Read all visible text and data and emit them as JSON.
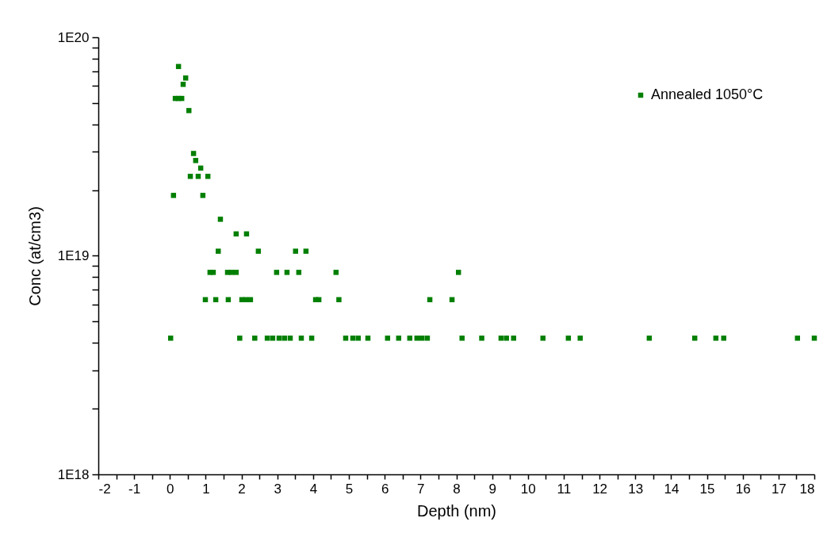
{
  "chart_data": {
    "type": "scatter",
    "xlabel": "Depth (nm)",
    "ylabel": "Conc (at/cm3)",
    "log": "y",
    "grid": false,
    "legend": "top right",
    "marker": "square",
    "xlim": [
      -2,
      18
    ],
    "xticks": [
      -2,
      {
        "value": -1.5,
        "label": null
      },
      -1,
      {
        "value": -0.5,
        "label": null
      },
      0,
      {
        "value": 0.5,
        "label": null
      },
      1,
      {
        "value": 1.5,
        "label": null
      },
      2,
      {
        "value": 2.5,
        "label": null
      },
      3,
      {
        "value": 3.5,
        "label": null
      },
      4,
      {
        "value": 4.5,
        "label": null
      },
      5,
      {
        "value": 5.5,
        "label": null
      },
      6,
      {
        "value": 6.5,
        "label": null
      },
      7,
      {
        "value": 7.5,
        "label": null
      },
      8,
      {
        "value": 8.5,
        "label": null
      },
      9,
      {
        "value": 9.5,
        "label": null
      },
      10,
      {
        "value": 10.5,
        "label": null
      },
      11,
      {
        "value": 11.5,
        "label": null
      },
      12,
      {
        "value": 12.5,
        "label": null
      },
      13,
      {
        "value": 13.5,
        "label": null
      },
      14,
      {
        "value": 14.5,
        "label": null
      },
      15,
      {
        "value": 15.5,
        "label": null
      },
      16,
      {
        "value": 16.5,
        "label": null
      },
      17,
      {
        "value": 17.5,
        "label": null
      },
      18
    ],
    "ylim": [
      1e+18,
      1e+20
    ],
    "yticks": [
      {
        "value": 1e+18,
        "label": "1E18"
      },
      {
        "value": 2e+18,
        "label": null
      },
      {
        "value": 3e+18,
        "label": null
      },
      {
        "value": 4e+18,
        "label": null
      },
      {
        "value": 5e+18,
        "label": null
      },
      {
        "value": 6e+18,
        "label": null
      },
      {
        "value": 7e+18,
        "label": null
      },
      {
        "value": 8e+18,
        "label": null
      },
      {
        "value": 9e+18,
        "label": null
      },
      {
        "value": 1e+19,
        "label": "1E19"
      },
      {
        "value": 2e+19,
        "label": null
      },
      {
        "value": 3e+19,
        "label": null
      },
      {
        "value": 4e+19,
        "label": null
      },
      {
        "value": 5e+19,
        "label": null
      },
      {
        "value": 6e+19,
        "label": null
      },
      {
        "value": 7e+19,
        "label": null
      },
      {
        "value": 8e+19,
        "label": null
      },
      {
        "value": 9e+19,
        "label": null
      },
      {
        "value": 1e+20,
        "label": "1E20"
      }
    ],
    "series": [
      {
        "name": "Annealed 1050°C",
        "color": "#007f00",
        "x": [
          0.24,
          0.44,
          0.37,
          0.15,
          0.24,
          0.33,
          0.53,
          0.66,
          0.72,
          0.86,
          0.57,
          0.79,
          1.06,
          0.1,
          0.92,
          1.41,
          1.85,
          2.14,
          1.35,
          2.47,
          3.51,
          3.8,
          1.12,
          1.21,
          1.61,
          1.72,
          1.85,
          2.98,
          3.27,
          3.6,
          4.64,
          8.06,
          0.99,
          1.28,
          1.63,
          2.01,
          2.12,
          2.25,
          4.07,
          4.16,
          4.72,
          7.26,
          7.88,
          0.02,
          1.95,
          2.37,
          2.72,
          2.87,
          3.05,
          3.2,
          3.36,
          3.67,
          3.96,
          4.91,
          5.11,
          5.26,
          5.53,
          6.08,
          6.39,
          6.7,
          6.9,
          7.04,
          7.19,
          8.16,
          8.71,
          9.25,
          9.4,
          9.6,
          10.42,
          11.13,
          11.46,
          13.39,
          14.66,
          15.25,
          15.47,
          17.53,
          18.0
        ],
        "values": [
          7.35e+19,
          6.51e+19,
          6.09e+19,
          5.25e+19,
          5.25e+19,
          5.25e+19,
          4.62e+19,
          2.94e+19,
          2.73e+19,
          2.52e+19,
          2.31e+19,
          2.31e+19,
          2.31e+19,
          1.89e+19,
          1.89e+19,
          1.47e+19,
          1.26e+19,
          1.26e+19,
          1.05e+19,
          1.05e+19,
          1.05e+19,
          1.05e+19,
          8.4e+18,
          8.4e+18,
          8.4e+18,
          8.4e+18,
          8.4e+18,
          8.4e+18,
          8.4e+18,
          8.4e+18,
          8.4e+18,
          8.4e+18,
          6.3e+18,
          6.3e+18,
          6.3e+18,
          6.3e+18,
          6.3e+18,
          6.3e+18,
          6.3e+18,
          6.3e+18,
          6.3e+18,
          6.3e+18,
          6.3e+18,
          4.2e+18,
          4.2e+18,
          4.2e+18,
          4.2e+18,
          4.2e+18,
          4.2e+18,
          4.2e+18,
          4.2e+18,
          4.2e+18,
          4.2e+18,
          4.2e+18,
          4.2e+18,
          4.2e+18,
          4.2e+18,
          4.2e+18,
          4.2e+18,
          4.2e+18,
          4.2e+18,
          4.2e+18,
          4.2e+18,
          4.2e+18,
          4.2e+18,
          4.2e+18,
          4.2e+18,
          4.2e+18,
          4.2e+18,
          4.2e+18,
          4.2e+18,
          4.2e+18,
          4.2e+18,
          4.2e+18,
          4.2e+18,
          4.2e+18,
          4.2e+18
        ]
      }
    ]
  }
}
